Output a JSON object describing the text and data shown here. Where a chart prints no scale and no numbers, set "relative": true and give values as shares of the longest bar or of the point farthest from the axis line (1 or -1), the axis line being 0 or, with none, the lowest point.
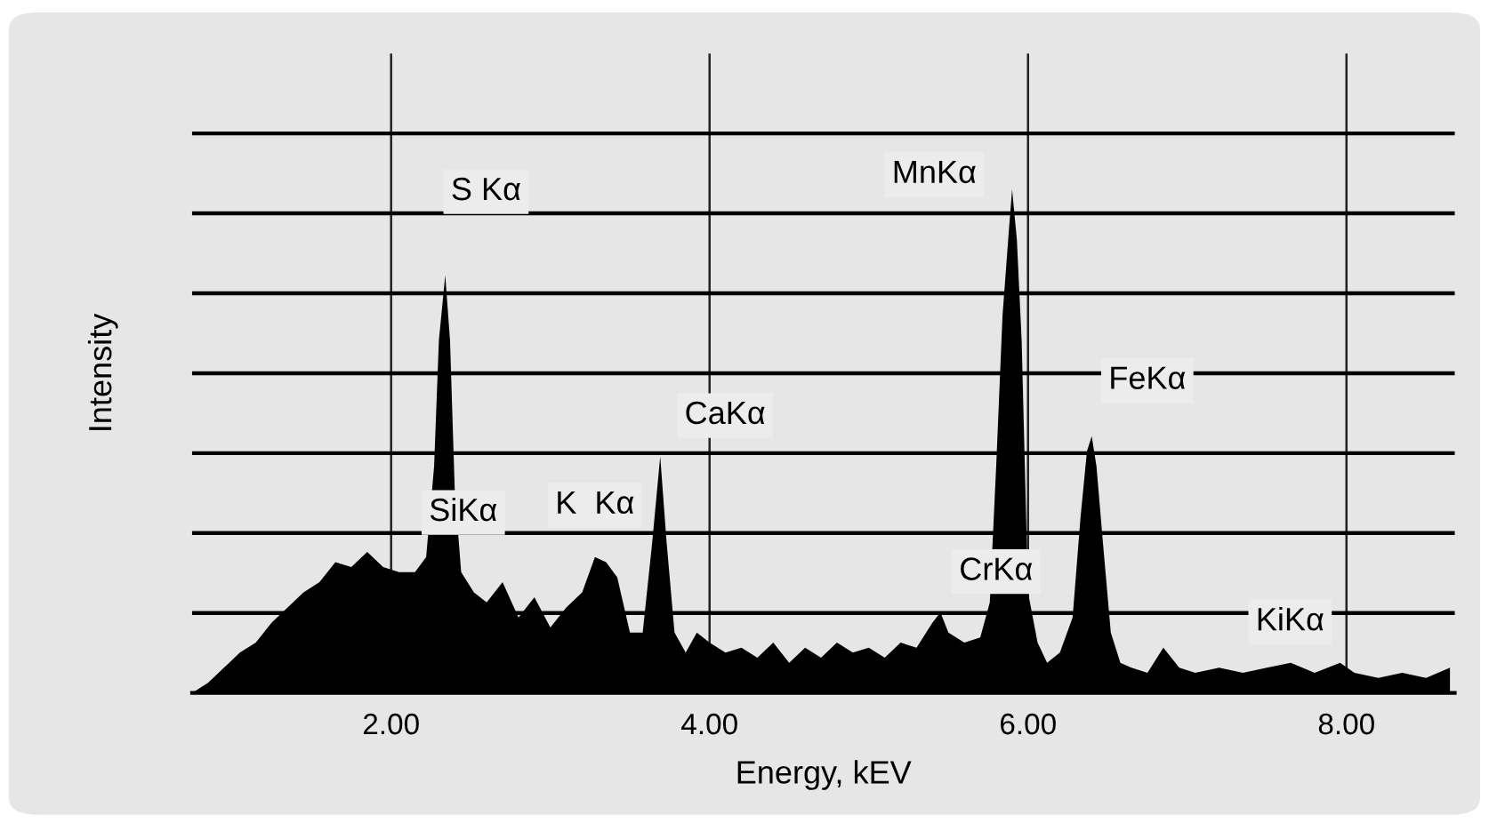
{
  "chart_data": {
    "type": "area",
    "relative": true,
    "xlabel": "Energy, kEV",
    "ylabel": "Intensity",
    "color": "#000000",
    "grid": true,
    "xlim": [
      0.75,
      8.68
    ],
    "xticks": [
      {
        "value": 2,
        "label": "2.00"
      },
      {
        "value": 4,
        "label": "4.00"
      },
      {
        "value": 6,
        "label": "6.00"
      },
      {
        "value": 8,
        "label": "8.00"
      }
    ],
    "x": [
      0.75,
      0.85,
      0.95,
      1.05,
      1.15,
      1.25,
      1.35,
      1.45,
      1.55,
      1.65,
      1.75,
      1.85,
      1.95,
      2.05,
      2.15,
      2.22,
      2.27,
      2.3,
      2.34,
      2.37,
      2.4,
      2.44,
      2.52,
      2.6,
      2.7,
      2.8,
      2.9,
      3.0,
      3.1,
      3.2,
      3.28,
      3.35,
      3.42,
      3.5,
      3.58,
      3.64,
      3.69,
      3.73,
      3.78,
      3.85,
      3.92,
      4.0,
      4.1,
      4.2,
      4.3,
      4.4,
      4.5,
      4.6,
      4.7,
      4.8,
      4.9,
      5.0,
      5.1,
      5.2,
      5.3,
      5.4,
      5.45,
      5.5,
      5.6,
      5.7,
      5.76,
      5.8,
      5.84,
      5.88,
      5.9,
      5.93,
      5.96,
      6.0,
      6.06,
      6.12,
      6.2,
      6.28,
      6.33,
      6.37,
      6.4,
      6.43,
      6.47,
      6.52,
      6.58,
      6.65,
      6.75,
      6.85,
      6.95,
      7.05,
      7.2,
      7.35,
      7.5,
      7.65,
      7.8,
      7.96,
      8.05,
      8.2,
      8.35,
      8.5,
      8.65
    ],
    "values": [
      0.0,
      0.02,
      0.05,
      0.08,
      0.1,
      0.14,
      0.17,
      0.2,
      0.22,
      0.26,
      0.25,
      0.28,
      0.25,
      0.24,
      0.24,
      0.27,
      0.45,
      0.7,
      0.83,
      0.7,
      0.4,
      0.24,
      0.2,
      0.18,
      0.22,
      0.15,
      0.19,
      0.13,
      0.17,
      0.2,
      0.27,
      0.26,
      0.23,
      0.12,
      0.12,
      0.3,
      0.47,
      0.3,
      0.12,
      0.08,
      0.12,
      0.1,
      0.08,
      0.09,
      0.07,
      0.1,
      0.06,
      0.09,
      0.07,
      0.1,
      0.08,
      0.09,
      0.07,
      0.1,
      0.09,
      0.14,
      0.16,
      0.12,
      0.1,
      0.11,
      0.18,
      0.45,
      0.75,
      0.92,
      1.0,
      0.9,
      0.7,
      0.2,
      0.1,
      0.06,
      0.08,
      0.15,
      0.35,
      0.48,
      0.51,
      0.45,
      0.3,
      0.12,
      0.06,
      0.05,
      0.04,
      0.09,
      0.05,
      0.04,
      0.05,
      0.04,
      0.05,
      0.06,
      0.04,
      0.06,
      0.04,
      0.03,
      0.04,
      0.03,
      0.05
    ],
    "annotations": [
      {
        "text": "S Kα",
        "x": 2.34,
        "y": 0.83
      },
      {
        "text": "MnKα",
        "x": 5.9,
        "y": 1.0
      },
      {
        "text": "CaKα",
        "x": 3.69,
        "y": 0.47
      },
      {
        "text": "FeKα",
        "x": 6.4,
        "y": 0.51
      },
      {
        "text": "SiKα",
        "x": 2.22,
        "y": 0.27
      },
      {
        "text": "K  Kα",
        "x": 3.28,
        "y": 0.27
      },
      {
        "text": "CrKα",
        "x": 5.45,
        "y": 0.16
      },
      {
        "text": "KiKα",
        "x": 7.96,
        "y": 0.06
      }
    ]
  }
}
